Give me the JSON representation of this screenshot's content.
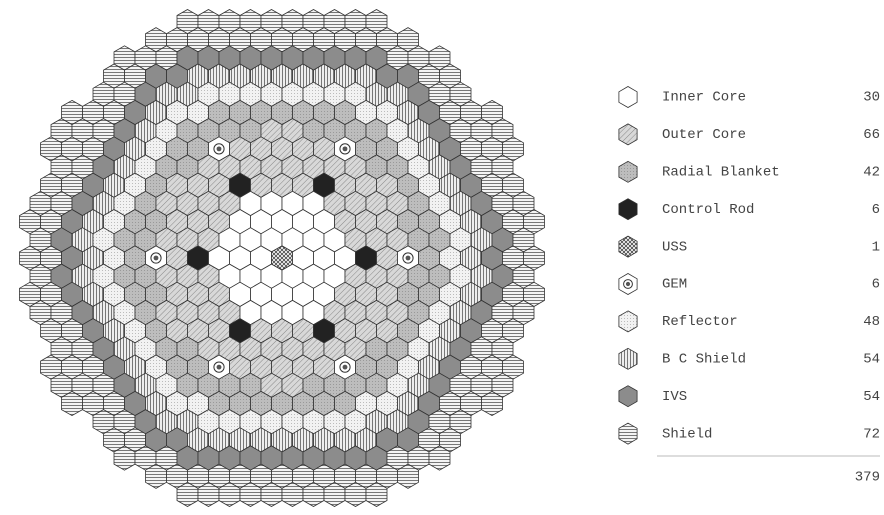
{
  "legend": {
    "items": [
      {
        "label": "Inner Core",
        "count": 30
      },
      {
        "label": "Outer Core",
        "count": 66
      },
      {
        "label": "Radial Blanket",
        "count": 42
      },
      {
        "label": "Control Rod",
        "count": 6
      },
      {
        "label": "USS",
        "count": 1
      },
      {
        "label": "GEM",
        "count": 6
      },
      {
        "label": "Reflector",
        "count": 48
      },
      {
        "label": "B C Shield",
        "count": 54
      },
      {
        "label": "IVS",
        "count": 54
      },
      {
        "label": "Shield",
        "count": 72
      }
    ],
    "total": 379
  }
}
